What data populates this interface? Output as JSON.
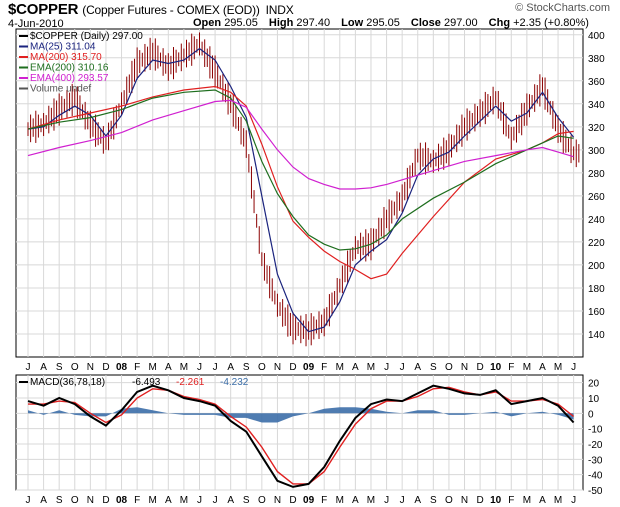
{
  "header": {
    "symbol": "$COPPER",
    "description": "(Copper Futures - COMEX (EOD))",
    "exchange": "INDX",
    "date": "4-Jun-2010",
    "open_label": "Open",
    "open_value": "295.05",
    "high_label": "High",
    "high_value": "297.40",
    "low_label": "Low",
    "low_value": "295.05",
    "close_label": "Close",
    "close_value": "297.00",
    "chg_label": "Chg",
    "chg_value": "+2.35 (+0.80%)",
    "brand": "© StockCharts.com"
  },
  "colors": {
    "price": "#8b0000",
    "ma25": "#1a237e",
    "ma200": "#e02020",
    "ema200": "#1e6e1e",
    "ema400": "#d020d0",
    "volume": "#555555",
    "macd": "#000000",
    "signal": "#e02020",
    "histogram": "#3c6ea8",
    "grid": "#d8d8d8"
  },
  "chart_data": [
    {
      "type": "line",
      "legend": [
        {
          "label": "$COPPER (Daily) 297.00",
          "color": "#000000"
        },
        {
          "label": "MA(25) 311.04",
          "color": "#1a237e"
        },
        {
          "label": "MA(200) 315.70",
          "color": "#e02020"
        },
        {
          "label": "EMA(200) 310.16",
          "color": "#1e6e1e"
        },
        {
          "label": "EMA(400) 293.57",
          "color": "#d020d0"
        },
        {
          "label": "Volume undef",
          "color": "#555555"
        }
      ],
      "ylim": [
        120,
        405
      ],
      "yticks": [
        140,
        160,
        180,
        200,
        220,
        240,
        260,
        280,
        300,
        320,
        340,
        360,
        380,
        400
      ],
      "xlim": [
        0,
        40
      ],
      "xticks": [
        {
          "x": 0,
          "label": "J"
        },
        {
          "x": 1,
          "label": "A"
        },
        {
          "x": 2,
          "label": "S"
        },
        {
          "x": 3,
          "label": "O"
        },
        {
          "x": 4,
          "label": "N"
        },
        {
          "x": 5,
          "label": "D"
        },
        {
          "x": 6,
          "label": "08"
        },
        {
          "x": 7,
          "label": "F"
        },
        {
          "x": 8,
          "label": "M"
        },
        {
          "x": 9,
          "label": "A"
        },
        {
          "x": 10,
          "label": "M"
        },
        {
          "x": 11,
          "label": "J"
        },
        {
          "x": 12,
          "label": "J"
        },
        {
          "x": 13,
          "label": "A"
        },
        {
          "x": 14,
          "label": "S"
        },
        {
          "x": 15,
          "label": "O"
        },
        {
          "x": 16,
          "label": "N"
        },
        {
          "x": 17,
          "label": "D"
        },
        {
          "x": 18,
          "label": "09"
        },
        {
          "x": 19,
          "label": "F"
        },
        {
          "x": 20,
          "label": "M"
        },
        {
          "x": 21,
          "label": "A"
        },
        {
          "x": 22,
          "label": "M"
        },
        {
          "x": 23,
          "label": "J"
        },
        {
          "x": 24,
          "label": "J"
        },
        {
          "x": 25,
          "label": "A"
        },
        {
          "x": 26,
          "label": "S"
        },
        {
          "x": 27,
          "label": "O"
        },
        {
          "x": 28,
          "label": "N"
        },
        {
          "x": 29,
          "label": "D"
        },
        {
          "x": 30,
          "label": "10"
        },
        {
          "x": 31,
          "label": "F"
        },
        {
          "x": 32,
          "label": "M"
        },
        {
          "x": 33,
          "label": "A"
        },
        {
          "x": 34,
          "label": "M"
        },
        {
          "x": 35,
          "label": "J"
        }
      ],
      "bold_xticks": [
        "08",
        "09",
        "10"
      ],
      "series": [
        {
          "name": "$COPPER (Daily)",
          "style": "bars",
          "x": [
            0,
            1,
            2,
            3,
            4,
            5,
            6,
            7,
            8,
            9,
            10,
            11,
            12,
            13,
            14,
            15,
            16,
            17,
            18,
            19,
            20,
            21,
            22,
            23,
            24,
            25,
            26,
            27,
            28,
            29,
            30,
            31,
            32,
            33,
            34,
            35
          ],
          "values": [
            318,
            322,
            335,
            345,
            322,
            306,
            340,
            375,
            385,
            372,
            382,
            392,
            368,
            340,
            305,
            205,
            165,
            145,
            143,
            150,
            182,
            215,
            218,
            240,
            258,
            295,
            290,
            300,
            320,
            332,
            345,
            310,
            335,
            355,
            318,
            297
          ]
        },
        {
          "name": "MA(25)",
          "x": [
            0,
            1,
            2,
            3,
            4,
            5,
            6,
            7,
            8,
            9,
            10,
            11,
            12,
            13,
            14,
            15,
            16,
            17,
            18,
            19,
            20,
            21,
            22,
            23,
            24,
            25,
            26,
            27,
            28,
            29,
            30,
            31,
            32,
            33,
            34,
            35
          ],
          "values": [
            318,
            320,
            330,
            338,
            330,
            312,
            330,
            362,
            378,
            375,
            378,
            388,
            378,
            355,
            328,
            260,
            192,
            158,
            142,
            146,
            168,
            200,
            212,
            222,
            245,
            278,
            292,
            298,
            312,
            325,
            338,
            325,
            332,
            350,
            328,
            311
          ]
        },
        {
          "name": "MA(200)",
          "x": [
            0,
            2,
            4,
            6,
            8,
            10,
            12,
            13,
            14,
            15,
            16,
            17,
            18,
            19,
            20,
            21,
            22,
            23,
            24,
            26,
            28,
            30,
            32,
            33,
            34,
            35
          ],
          "values": [
            318,
            326,
            332,
            338,
            346,
            352,
            355,
            350,
            338,
            305,
            268,
            238,
            224,
            212,
            203,
            196,
            188,
            192,
            210,
            242,
            272,
            292,
            300,
            306,
            314,
            316
          ]
        },
        {
          "name": "EMA(200)",
          "x": [
            0,
            2,
            4,
            6,
            8,
            10,
            12,
            13,
            14,
            15,
            16,
            17,
            18,
            19,
            20,
            21,
            22,
            23,
            24,
            26,
            28,
            30,
            32,
            33,
            34,
            35
          ],
          "values": [
            318,
            324,
            328,
            335,
            345,
            350,
            352,
            345,
            325,
            290,
            262,
            242,
            226,
            218,
            213,
            214,
            218,
            226,
            240,
            258,
            272,
            288,
            300,
            306,
            312,
            310
          ]
        },
        {
          "name": "EMA(400)",
          "x": [
            0,
            2,
            4,
            6,
            8,
            10,
            12,
            13,
            14,
            15,
            16,
            17,
            18,
            19,
            20,
            21,
            22,
            23,
            24,
            26,
            28,
            30,
            32,
            33,
            34,
            35
          ],
          "values": [
            295,
            302,
            308,
            315,
            326,
            334,
            342,
            343,
            337,
            318,
            300,
            285,
            275,
            270,
            266,
            266,
            267,
            270,
            274,
            282,
            290,
            295,
            300,
            302,
            298,
            294
          ]
        }
      ]
    },
    {
      "type": "line",
      "legend_label": "MACD(36,78,18)",
      "legend_values": [
        {
          "text": "-6.493",
          "color": "#000000"
        },
        {
          "text": "-2.261",
          "color": "#e02020"
        },
        {
          "text": "-4.232",
          "color": "#3c6ea8"
        }
      ],
      "ylim": [
        -50,
        25
      ],
      "yticks": [
        -50,
        -40,
        -30,
        -20,
        -10,
        0,
        10,
        20
      ],
      "xlim": [
        0,
        40
      ],
      "series": [
        {
          "name": "MACD",
          "x": [
            0,
            1,
            2,
            3,
            4,
            5,
            6,
            7,
            8,
            9,
            10,
            11,
            12,
            13,
            14,
            15,
            16,
            17,
            18,
            19,
            20,
            21,
            22,
            23,
            24,
            25,
            26,
            27,
            28,
            29,
            30,
            31,
            32,
            33,
            34,
            35
          ],
          "values": [
            8,
            5,
            10,
            6,
            -2,
            -8,
            2,
            14,
            18,
            15,
            10,
            8,
            5,
            -5,
            -12,
            -28,
            -44,
            -48,
            -46,
            -35,
            -18,
            -3,
            6,
            9,
            8,
            13,
            18,
            16,
            13,
            12,
            15,
            6,
            8,
            10,
            5,
            -6
          ]
        },
        {
          "name": "Signal",
          "x": [
            0,
            1,
            2,
            3,
            4,
            5,
            6,
            7,
            8,
            9,
            10,
            11,
            12,
            13,
            14,
            15,
            16,
            17,
            18,
            19,
            20,
            21,
            22,
            23,
            24,
            25,
            26,
            27,
            28,
            29,
            30,
            31,
            32,
            33,
            34,
            35
          ],
          "values": [
            6,
            6,
            8,
            7,
            0,
            -6,
            -1,
            10,
            16,
            15,
            11,
            9,
            6,
            -2,
            -9,
            -22,
            -38,
            -46,
            -46,
            -38,
            -22,
            -7,
            3,
            8,
            8,
            11,
            16,
            17,
            14,
            12,
            14,
            8,
            8,
            9,
            6,
            -2
          ]
        },
        {
          "name": "Histogram",
          "style": "area",
          "x": [
            0,
            1,
            2,
            3,
            4,
            5,
            6,
            7,
            8,
            9,
            10,
            11,
            12,
            13,
            14,
            15,
            16,
            17,
            18,
            19,
            20,
            21,
            22,
            23,
            24,
            25,
            26,
            27,
            28,
            29,
            30,
            31,
            32,
            33,
            34,
            35
          ],
          "values": [
            2,
            -1,
            2,
            -1,
            -2,
            -2,
            3,
            4,
            2,
            0,
            -1,
            -1,
            -1,
            -3,
            -3,
            -6,
            -6,
            -2,
            0,
            3,
            4,
            4,
            3,
            1,
            0,
            2,
            2,
            -1,
            -1,
            0,
            1,
            -2,
            0,
            1,
            -1,
            -4
          ]
        }
      ]
    }
  ]
}
